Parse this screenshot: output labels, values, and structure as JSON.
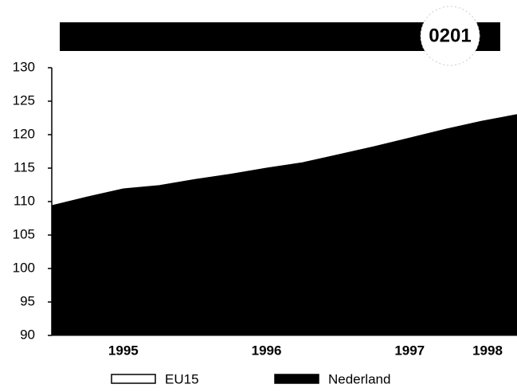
{
  "chart_data": {
    "type": "area",
    "badge": "0201",
    "categories": [
      null,
      null,
      "1995",
      null,
      null,
      null,
      "1996",
      null,
      null,
      null,
      "1997",
      null,
      null,
      "1998"
    ],
    "series": [
      {
        "name": "EU15",
        "color": "#ffffff",
        "values": [
          null,
          null,
          null,
          null,
          null,
          null,
          null,
          null,
          null,
          null,
          null,
          null,
          null,
          null
        ]
      },
      {
        "name": "Nederland",
        "color": "#000000",
        "values": [
          109.4,
          110.7,
          111.9,
          112.4,
          113.3,
          114.1,
          115.0,
          115.8,
          117.0,
          118.2,
          119.5,
          120.8,
          122.0,
          123.0
        ]
      }
    ],
    "ylim": [
      90,
      130
    ],
    "yticks": [
      90,
      95,
      100,
      105,
      110,
      115,
      120,
      125,
      130
    ]
  }
}
